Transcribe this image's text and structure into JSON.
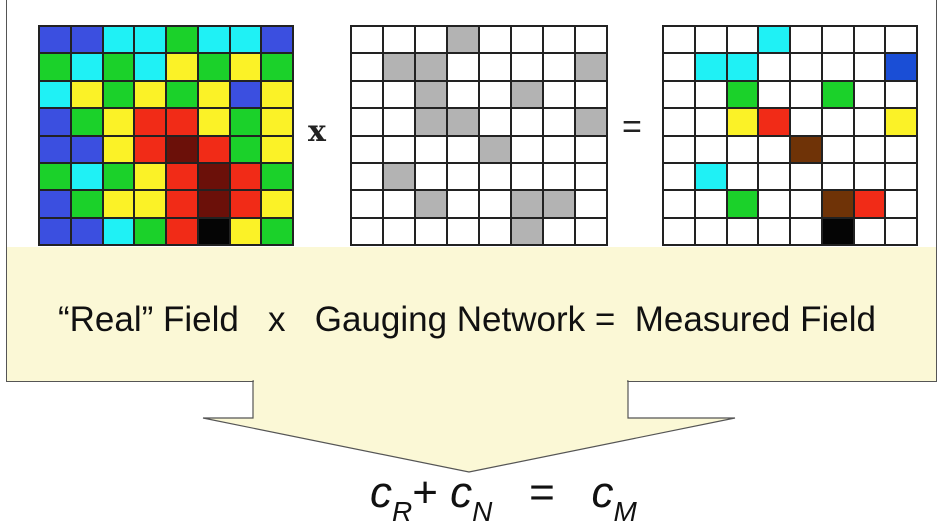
{
  "diagram": {
    "operator_times": "x",
    "operator_equals": "=",
    "caption": "“Real” Field   x   Gauging Network =  Measured Field",
    "equation": {
      "term1": "c",
      "term1_sub": "R",
      "plus": "+",
      "term2": "c",
      "term2_sub": "N",
      "equals": "=",
      "term3": "c",
      "term3_sub": "M"
    },
    "colors": {
      "B": "#3b4fe0",
      "C": "#1ff1f5",
      "G": "#1bd12a",
      "Y": "#fbf227",
      "R": "#f12b17",
      "D": "#6b1009",
      "K": "#050505",
      "W": "#ffffff",
      "S": "#b3b3b3",
      "N": "#6f3307",
      "L": "#1a4ed6"
    },
    "real_field": [
      "BBCCGCCB",
      "GCGCYGYG",
      "CYGYGYBY",
      "BGYRRYGY",
      "BBYRDRGY",
      "GCGYRDRG",
      "BGYYRDRY",
      "BBCGRKYG"
    ],
    "gauging_network": [
      "WWWSWWWW",
      "WSSWWWWS",
      "WWSWWSWW",
      "WWSSWWWS",
      "WWWWSWWW",
      "WSWWWWWW",
      "WWSWWSSW",
      "WWWWWSWW"
    ],
    "measured_field": [
      "WWWCWWWW",
      "WCCWWWWL",
      "WWGWWGWW",
      "WWYRWWWY",
      "WWWWNWWW",
      "WCWWWWWW",
      "WWGWWNRW",
      "WWWWWKWW"
    ]
  }
}
